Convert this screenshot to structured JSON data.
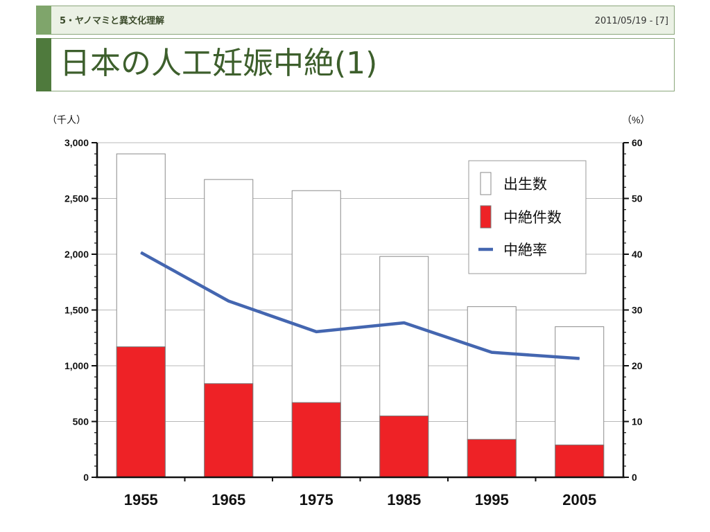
{
  "header": {
    "section": "5・ヤノマミと異文化理解",
    "date": "2011/05/19 - [7]",
    "title": "日本の人工妊娠中絶(1)"
  },
  "colors": {
    "births": "#ffffff",
    "abortions": "#ee2226",
    "rate": "#4466b0",
    "accent": "#4f7a3d"
  },
  "chart_data": {
    "type": "bar",
    "categories": [
      "1955",
      "1965",
      "1975",
      "1985",
      "1995",
      "2005"
    ],
    "series": [
      {
        "name": "出生数",
        "kind": "bar-back",
        "axis": "left",
        "values": [
          2900,
          2670,
          2570,
          1980,
          1530,
          1350
        ]
      },
      {
        "name": "中絶件数",
        "kind": "bar-front",
        "axis": "left",
        "values": [
          1170,
          840,
          670,
          550,
          340,
          290
        ]
      },
      {
        "name": "中絶率",
        "kind": "line",
        "axis": "right",
        "values": [
          40.3,
          31.6,
          26.1,
          27.7,
          22.4,
          21.3
        ]
      }
    ],
    "y_left": {
      "unit": "（千人）",
      "range": [
        0,
        3000
      ],
      "ticks": [
        "0",
        "500",
        "1,000",
        "1,500",
        "2,000",
        "2,500",
        "3,000"
      ]
    },
    "y_right": {
      "unit": "（%）",
      "range": [
        0,
        60
      ],
      "ticks": [
        "0",
        "10",
        "20",
        "30",
        "40",
        "50",
        "60"
      ]
    },
    "grid": true,
    "legend": {
      "position": "top-right",
      "items": [
        "出生数",
        "中絶件数",
        "中絶率"
      ]
    }
  }
}
